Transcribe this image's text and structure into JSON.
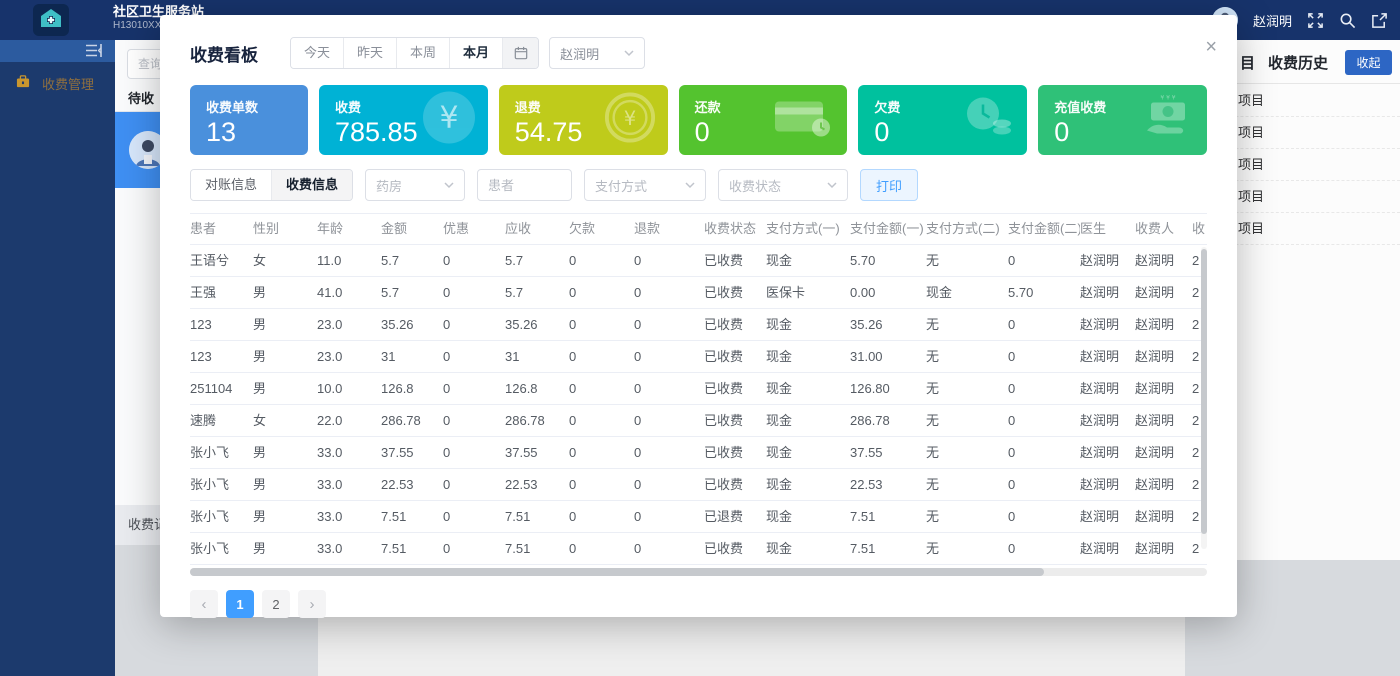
{
  "topbar": {
    "org_name": "社区卫生服务站",
    "org_code": "H13010XX",
    "user_name": "赵润明"
  },
  "sidebar": {
    "menu_item": "收费管理"
  },
  "background": {
    "left_panel": {
      "search_placeholder": "查询收",
      "tab_label": "待收",
      "footer_button": "收费记"
    },
    "right_panel": {
      "header_fragment": "目",
      "history_tab": "收费历史",
      "collapse_button": "收起",
      "list_items": [
        "项目",
        "项目",
        "项目",
        "项目",
        "项目"
      ]
    }
  },
  "modal": {
    "title": "收费看板",
    "close_label": "×",
    "date_filters": [
      {
        "label": "今天",
        "active": false
      },
      {
        "label": "昨天",
        "active": false
      },
      {
        "label": "本周",
        "active": false
      },
      {
        "label": "本月",
        "active": true
      }
    ],
    "operator_select_value": "赵润明",
    "cards": [
      {
        "label": "收费单数",
        "value": "13",
        "color": "#4a90dc",
        "icon": "none"
      },
      {
        "label": "收费",
        "value": "785.85",
        "color": "#00b2d5",
        "icon": "yen-circle-icon"
      },
      {
        "label": "退费",
        "value": "54.75",
        "color": "#bfcb1b",
        "icon": "yen-coin-icon"
      },
      {
        "label": "还款",
        "value": "0",
        "color": "#54c32f",
        "icon": "bank-card-icon"
      },
      {
        "label": "欠费",
        "value": "0",
        "color": "#00c19e",
        "icon": "coins-icon"
      },
      {
        "label": "充值收费",
        "value": "0",
        "color": "#2fc178",
        "icon": "money-hand-icon"
      }
    ],
    "tabs": [
      {
        "label": "对账信息",
        "active": false
      },
      {
        "label": "收费信息",
        "active": true
      }
    ],
    "filters": {
      "pharmacy_placeholder": "药房",
      "patient_placeholder": "患者",
      "payment_placeholder": "支付方式",
      "status_placeholder": "收费状态",
      "print_button": "打印"
    },
    "table": {
      "headers": [
        "患者",
        "性别",
        "年龄",
        "金额",
        "优惠",
        "应收",
        "欠款",
        "退款",
        "收费状态",
        "支付方式(一)",
        "支付金额(一)",
        "支付方式(二)",
        "支付金额(二)",
        "医生",
        "收费人",
        "收"
      ],
      "rows": [
        [
          "王语兮",
          "女",
          "11.0",
          "5.7",
          "0",
          "5.7",
          "0",
          "0",
          "已收费",
          "现金",
          "5.70",
          "无",
          "0",
          "赵润明",
          "赵润明",
          "2"
        ],
        [
          "王强",
          "男",
          "41.0",
          "5.7",
          "0",
          "5.7",
          "0",
          "0",
          "已收费",
          "医保卡",
          "0.00",
          "现金",
          "5.70",
          "赵润明",
          "赵润明",
          "2"
        ],
        [
          "123",
          "男",
          "23.0",
          "35.26",
          "0",
          "35.26",
          "0",
          "0",
          "已收费",
          "现金",
          "35.26",
          "无",
          "0",
          "赵润明",
          "赵润明",
          "2"
        ],
        [
          "123",
          "男",
          "23.0",
          "31",
          "0",
          "31",
          "0",
          "0",
          "已收费",
          "现金",
          "31.00",
          "无",
          "0",
          "赵润明",
          "赵润明",
          "2"
        ],
        [
          "251104",
          "男",
          "10.0",
          "126.8",
          "0",
          "126.8",
          "0",
          "0",
          "已收费",
          "现金",
          "126.80",
          "无",
          "0",
          "赵润明",
          "赵润明",
          "2"
        ],
        [
          "速腾",
          "女",
          "22.0",
          "286.78",
          "0",
          "286.78",
          "0",
          "0",
          "已收费",
          "现金",
          "286.78",
          "无",
          "0",
          "赵润明",
          "赵润明",
          "2"
        ],
        [
          "张小飞",
          "男",
          "33.0",
          "37.55",
          "0",
          "37.55",
          "0",
          "0",
          "已收费",
          "现金",
          "37.55",
          "无",
          "0",
          "赵润明",
          "赵润明",
          "2"
        ],
        [
          "张小飞",
          "男",
          "33.0",
          "22.53",
          "0",
          "22.53",
          "0",
          "0",
          "已收费",
          "现金",
          "22.53",
          "无",
          "0",
          "赵润明",
          "赵润明",
          "2"
        ],
        [
          "张小飞",
          "男",
          "33.0",
          "7.51",
          "0",
          "7.51",
          "0",
          "0",
          "已退费",
          "现金",
          "7.51",
          "无",
          "0",
          "赵润明",
          "赵润明",
          "2"
        ],
        [
          "张小飞",
          "男",
          "33.0",
          "7.51",
          "0",
          "7.51",
          "0",
          "0",
          "已收费",
          "现金",
          "7.51",
          "无",
          "0",
          "赵润明",
          "赵润明",
          "2"
        ]
      ]
    },
    "pagination": {
      "prev": "‹",
      "pages": [
        {
          "label": "1",
          "active": true
        },
        {
          "label": "2",
          "active": false
        }
      ],
      "next": "›"
    }
  }
}
